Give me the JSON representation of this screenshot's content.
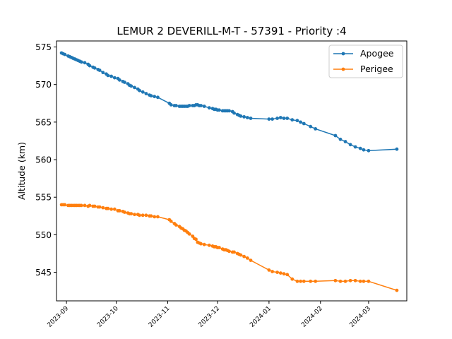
{
  "chart_data": {
    "type": "line",
    "title": "LEMUR 2 DEVERILL-M-T - 57391 - Priority :4",
    "xlabel": "",
    "ylabel": "Altitude (km)",
    "x_axis_type": "date",
    "xlim": [
      "2023-08-26",
      "2024-03-24"
    ],
    "ylim": [
      541.2,
      575.8
    ],
    "x_ticks": [
      "2023-09-01",
      "2023-10-01",
      "2023-11-01",
      "2023-12-01",
      "2024-01-01",
      "2024-02-01",
      "2024-03-01"
    ],
    "x_tick_labels": [
      "2023-09",
      "2023-10",
      "2023-11",
      "2023-12",
      "2024-01",
      "2024-02",
      "2024-03"
    ],
    "y_ticks": [
      545,
      550,
      555,
      560,
      565,
      570,
      575
    ],
    "y_tick_labels": [
      "545",
      "550",
      "555",
      "560",
      "565",
      "570",
      "575"
    ],
    "grid": false,
    "legend_position": "top-right",
    "series": [
      {
        "name": "Apogee",
        "color": "#1f77b4",
        "marker": "circle",
        "x": [
          "2023-08-29",
          "2023-08-30",
          "2023-08-31",
          "2023-09-02",
          "2023-09-03",
          "2023-09-04",
          "2023-09-05",
          "2023-09-06",
          "2023-09-07",
          "2023-09-08",
          "2023-09-09",
          "2023-09-10",
          "2023-09-12",
          "2023-09-14",
          "2023-09-15",
          "2023-09-17",
          "2023-09-18",
          "2023-09-20",
          "2023-09-21",
          "2023-09-23",
          "2023-09-25",
          "2023-09-26",
          "2023-09-28",
          "2023-09-30",
          "2023-10-02",
          "2023-10-03",
          "2023-10-05",
          "2023-10-06",
          "2023-10-08",
          "2023-10-09",
          "2023-10-10",
          "2023-10-12",
          "2023-10-14",
          "2023-10-15",
          "2023-10-17",
          "2023-10-19",
          "2023-10-21",
          "2023-10-22",
          "2023-10-24",
          "2023-10-26",
          "2023-11-02",
          "2023-11-03",
          "2023-11-05",
          "2023-11-06",
          "2023-11-08",
          "2023-11-09",
          "2023-11-10",
          "2023-11-11",
          "2023-11-12",
          "2023-11-13",
          "2023-11-14",
          "2023-11-16",
          "2023-11-17",
          "2023-11-18",
          "2023-11-19",
          "2023-11-20",
          "2023-11-21",
          "2023-11-23",
          "2023-11-26",
          "2023-11-28",
          "2023-11-29",
          "2023-11-30",
          "2023-12-01",
          "2023-12-02",
          "2023-12-04",
          "2023-12-05",
          "2023-12-06",
          "2023-12-07",
          "2023-12-08",
          "2023-12-10",
          "2023-12-11",
          "2023-12-13",
          "2023-12-14",
          "2023-12-15",
          "2023-12-17",
          "2023-12-19",
          "2023-12-21",
          "2024-01-01",
          "2024-01-03",
          "2024-01-06",
          "2024-01-08",
          "2024-01-10",
          "2024-01-12",
          "2024-01-15",
          "2024-01-18",
          "2024-01-20",
          "2024-01-22",
          "2024-01-26",
          "2024-01-29",
          "2024-02-10",
          "2024-02-13",
          "2024-02-16",
          "2024-02-19",
          "2024-02-22",
          "2024-02-25",
          "2024-02-27",
          "2024-03-01",
          "2024-03-18"
        ],
        "y": [
          574.2,
          574.1,
          574.0,
          573.8,
          573.7,
          573.6,
          573.5,
          573.4,
          573.3,
          573.2,
          573.1,
          573.0,
          572.9,
          572.7,
          572.5,
          572.3,
          572.2,
          572.0,
          571.9,
          571.6,
          571.4,
          571.2,
          571.1,
          570.9,
          570.8,
          570.6,
          570.4,
          570.3,
          570.1,
          569.9,
          569.8,
          569.6,
          569.4,
          569.2,
          569.0,
          568.8,
          568.6,
          568.5,
          568.4,
          568.3,
          567.5,
          567.3,
          567.2,
          567.2,
          567.1,
          567.1,
          567.1,
          567.1,
          567.1,
          567.1,
          567.2,
          567.2,
          567.2,
          567.3,
          567.3,
          567.2,
          567.2,
          567.1,
          566.9,
          566.8,
          566.7,
          566.7,
          566.6,
          566.6,
          566.5,
          566.5,
          566.5,
          566.5,
          566.5,
          566.4,
          566.2,
          566.0,
          565.9,
          565.8,
          565.7,
          565.6,
          565.5,
          565.4,
          565.4,
          565.5,
          565.6,
          565.5,
          565.5,
          565.3,
          565.2,
          565.0,
          564.8,
          564.4,
          564.1,
          563.2,
          562.7,
          562.4,
          562.0,
          561.7,
          561.5,
          561.3,
          561.2,
          561.4
        ]
      },
      {
        "name": "Perigee",
        "color": "#ff7f0e",
        "marker": "circle",
        "x": [
          "2023-08-29",
          "2023-08-30",
          "2023-08-31",
          "2023-09-02",
          "2023-09-03",
          "2023-09-04",
          "2023-09-05",
          "2023-09-06",
          "2023-09-07",
          "2023-09-08",
          "2023-09-09",
          "2023-09-10",
          "2023-09-12",
          "2023-09-14",
          "2023-09-15",
          "2023-09-17",
          "2023-09-18",
          "2023-09-20",
          "2023-09-21",
          "2023-09-23",
          "2023-09-25",
          "2023-09-26",
          "2023-09-28",
          "2023-09-30",
          "2023-10-02",
          "2023-10-03",
          "2023-10-05",
          "2023-10-06",
          "2023-10-08",
          "2023-10-09",
          "2023-10-10",
          "2023-10-12",
          "2023-10-14",
          "2023-10-15",
          "2023-10-17",
          "2023-10-19",
          "2023-10-21",
          "2023-10-22",
          "2023-10-24",
          "2023-10-26",
          "2023-11-02",
          "2023-11-03",
          "2023-11-05",
          "2023-11-06",
          "2023-11-08",
          "2023-11-09",
          "2023-11-10",
          "2023-11-11",
          "2023-11-12",
          "2023-11-13",
          "2023-11-14",
          "2023-11-16",
          "2023-11-17",
          "2023-11-18",
          "2023-11-19",
          "2023-11-20",
          "2023-11-21",
          "2023-11-23",
          "2023-11-26",
          "2023-11-28",
          "2023-11-29",
          "2023-11-30",
          "2023-12-01",
          "2023-12-02",
          "2023-12-04",
          "2023-12-05",
          "2023-12-06",
          "2023-12-07",
          "2023-12-08",
          "2023-12-10",
          "2023-12-11",
          "2023-12-13",
          "2023-12-14",
          "2023-12-15",
          "2023-12-17",
          "2023-12-19",
          "2023-12-21",
          "2024-01-01",
          "2024-01-03",
          "2024-01-06",
          "2024-01-08",
          "2024-01-10",
          "2024-01-12",
          "2024-01-15",
          "2024-01-18",
          "2024-01-20",
          "2024-01-22",
          "2024-01-26",
          "2024-01-29",
          "2024-02-10",
          "2024-02-13",
          "2024-02-16",
          "2024-02-19",
          "2024-02-22",
          "2024-02-25",
          "2024-02-27",
          "2024-03-01",
          "2024-03-18"
        ],
        "y": [
          554.0,
          554.0,
          554.0,
          553.9,
          553.9,
          553.9,
          553.9,
          553.9,
          553.9,
          553.9,
          553.9,
          553.9,
          553.9,
          553.8,
          553.9,
          553.8,
          553.8,
          553.7,
          553.7,
          553.6,
          553.5,
          553.5,
          553.4,
          553.4,
          553.2,
          553.2,
          553.1,
          553.0,
          552.9,
          552.8,
          552.8,
          552.7,
          552.7,
          552.6,
          552.6,
          552.6,
          552.5,
          552.5,
          552.4,
          552.4,
          552.0,
          551.8,
          551.5,
          551.3,
          551.1,
          550.9,
          550.8,
          550.6,
          550.5,
          550.3,
          550.1,
          549.8,
          549.5,
          549.4,
          549.0,
          548.9,
          548.8,
          548.7,
          548.6,
          548.5,
          548.4,
          548.4,
          548.3,
          548.3,
          548.1,
          548.0,
          548.0,
          547.9,
          547.8,
          547.7,
          547.7,
          547.5,
          547.4,
          547.3,
          547.1,
          546.9,
          546.6,
          545.3,
          545.1,
          545.0,
          544.9,
          544.8,
          544.7,
          544.1,
          543.8,
          543.8,
          543.8,
          543.8,
          543.8,
          543.9,
          543.8,
          543.8,
          543.9,
          543.9,
          543.8,
          543.8,
          543.8,
          542.6
        ]
      }
    ]
  }
}
